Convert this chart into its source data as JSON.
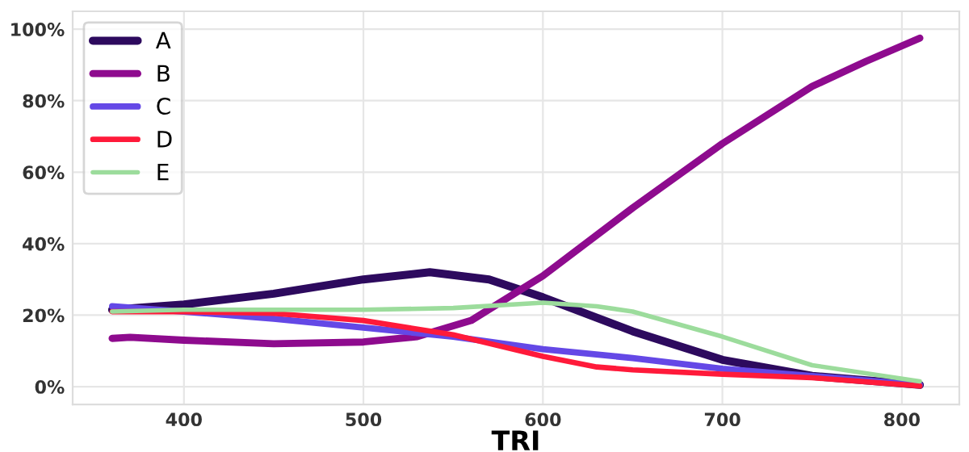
{
  "chart_data": {
    "type": "line",
    "xlabel": "TRI",
    "xlim": [
      338,
      832
    ],
    "xticks": [
      400,
      500,
      600,
      700,
      800
    ],
    "ylim": [
      -5,
      105
    ],
    "yticks": [
      {
        "value": 0,
        "label": "0%"
      },
      {
        "value": 20,
        "label": "20%"
      },
      {
        "value": 40,
        "label": "40%"
      },
      {
        "value": 60,
        "label": "60%"
      },
      {
        "value": 80,
        "label": "80%"
      },
      {
        "value": 100,
        "label": "100%"
      }
    ],
    "grid": true,
    "legend": "top left",
    "series": [
      {
        "name": "A",
        "color": "#2d0a5e",
        "x": [
          360,
          400,
          450,
          500,
          537,
          570,
          600,
          650,
          700,
          750,
          810
        ],
        "values": [
          21.5,
          23,
          26,
          30,
          32,
          30,
          25,
          15.5,
          7.5,
          3,
          0.5
        ]
      },
      {
        "name": "B",
        "color": "#8e0b8e",
        "x": [
          360,
          370,
          400,
          450,
          500,
          530,
          560,
          600,
          650,
          700,
          750,
          780,
          810
        ],
        "values": [
          13.5,
          13.8,
          13,
          12,
          12.5,
          14,
          18.5,
          31,
          50,
          68,
          84,
          91,
          97.5
        ]
      },
      {
        "name": "C",
        "color": "#6448e6",
        "x": [
          360,
          400,
          450,
          500,
          550,
          600,
          650,
          700,
          750,
          810
        ],
        "values": [
          22.5,
          21,
          19,
          16.5,
          14,
          10.5,
          8,
          5,
          3,
          0.5
        ]
      },
      {
        "name": "D",
        "color": "#ff1a3a",
        "x": [
          360,
          400,
          450,
          500,
          550,
          600,
          630,
          650,
          700,
          750,
          810
        ],
        "values": [
          21,
          21,
          20.5,
          18.5,
          14.5,
          8.5,
          5.5,
          4.7,
          3.5,
          2.5,
          0.2
        ]
      },
      {
        "name": "E",
        "color": "#9cdc9c",
        "x": [
          360,
          400,
          450,
          500,
          550,
          600,
          630,
          650,
          700,
          750,
          810
        ],
        "values": [
          21,
          21.5,
          21.5,
          21.5,
          22,
          23.5,
          22.5,
          21,
          14,
          6,
          1.5
        ]
      }
    ]
  }
}
